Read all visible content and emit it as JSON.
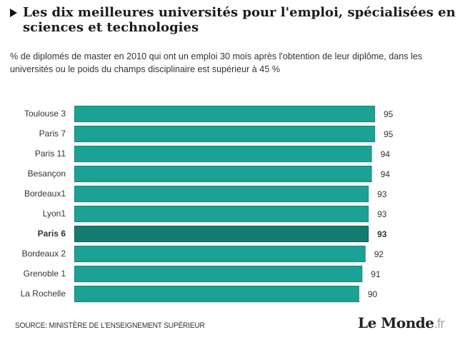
{
  "header": {
    "title": "Les dix meilleures universités pour l'emploi, spécialisées en sciences et technologies",
    "subtitle": "% de diplomés de master en 2010 qui ont un emploi 30 mois après l'obtention de leur diplôme, dans les universités ou le poids du champs disciplinaire est supérieur à 45 %"
  },
  "footer": {
    "source": "SOURCE: MINISTÈRE DE L'ENSEIGNEMENT SUPÉRIEUR",
    "logo_main": "Le Monde",
    "logo_suffix": ".fr"
  },
  "colors": {
    "bar": "#1aa394",
    "bar_border": "#138a7d",
    "highlight": "#137b70",
    "highlight_border": "#0e6158"
  },
  "chart_data": {
    "type": "bar",
    "orientation": "horizontal",
    "title": "Les dix meilleures universités pour l'emploi, spécialisées en sciences et technologies",
    "xlabel": "",
    "ylabel": "",
    "xlim": [
      0,
      95
    ],
    "grid": false,
    "categories": [
      "Toulouse 3",
      "Paris 7",
      "Paris 11",
      "Besançon",
      "Bordeaux1",
      "Lyon1",
      "Paris 6",
      "Bordeaux 2",
      "Grenoble 1",
      "La Rochelle"
    ],
    "values": [
      95,
      95,
      94,
      94,
      93,
      93,
      93,
      92,
      91,
      90
    ],
    "highlighted": "Paris 6"
  }
}
